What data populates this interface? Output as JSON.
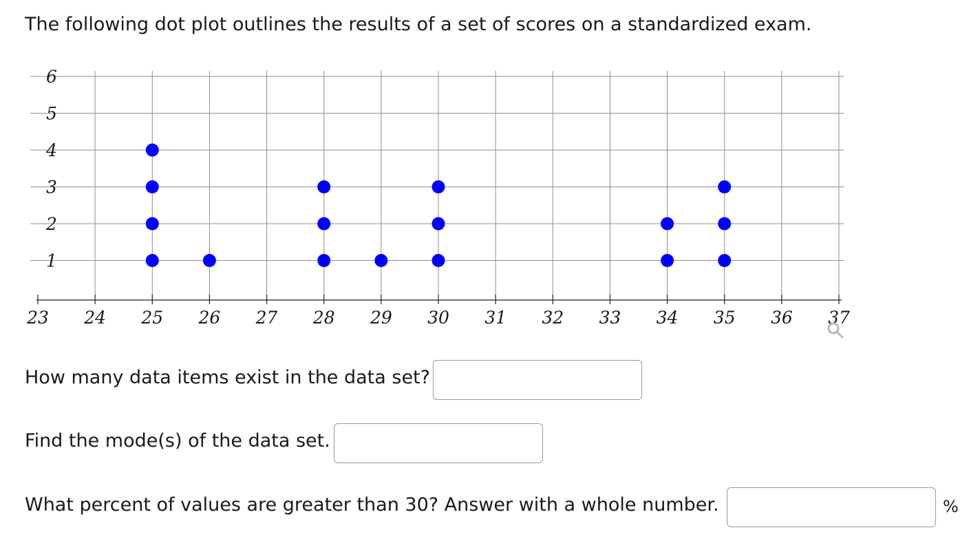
{
  "intro": "The following dot plot outlines the results of a set of scores on a standardized exam.",
  "chart_data": {
    "type": "dot plot",
    "x_ticks": [
      23,
      24,
      25,
      26,
      27,
      28,
      29,
      30,
      31,
      32,
      33,
      34,
      35,
      36,
      37
    ],
    "y_ticks": [
      1,
      2,
      3,
      4,
      5,
      6
    ],
    "xlim": [
      23,
      37
    ],
    "ylim": [
      0,
      6
    ],
    "grid": true,
    "dot_color": "#0000ff",
    "points": [
      {
        "x": 25,
        "count": 4
      },
      {
        "x": 26,
        "count": 1
      },
      {
        "x": 28,
        "count": 3
      },
      {
        "x": 29,
        "count": 1
      },
      {
        "x": 30,
        "count": 3
      },
      {
        "x": 34,
        "count": 2
      },
      {
        "x": 35,
        "count": 3
      }
    ],
    "zoom_icon": "magnifier-icon"
  },
  "questions": {
    "q1": {
      "label": "How many data items exist in the data set?",
      "value": ""
    },
    "q2": {
      "label": "Find the mode(s) of the data set.",
      "value": ""
    },
    "q3": {
      "label": "What percent of values are greater than 30? Answer with a whole number.",
      "value": "",
      "unit": "%"
    }
  }
}
